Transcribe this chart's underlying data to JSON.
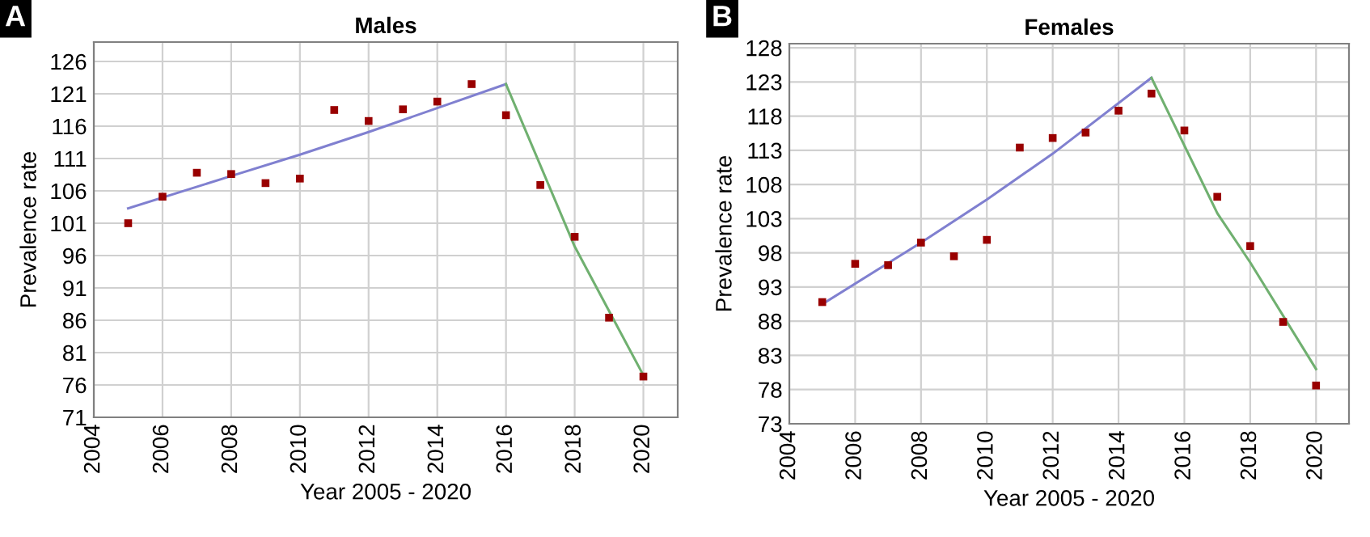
{
  "chart_data": [
    {
      "type": "scatter",
      "title": "Males",
      "xlabel": "Year 2005 - 2020",
      "ylabel": "Prevalence rate",
      "annotations": [
        "A"
      ],
      "xlim": [
        2004,
        2021
      ],
      "xticks": [
        2004,
        2006,
        2008,
        2010,
        2012,
        2014,
        2016,
        2018,
        2020
      ],
      "ylim": [
        71,
        129
      ],
      "yticks": [
        71,
        76,
        81,
        86,
        91,
        96,
        101,
        106,
        111,
        116,
        121,
        126
      ],
      "grid": true,
      "legend": false,
      "series": [
        {
          "color": "#990000",
          "marker": "square",
          "x": [
            2005,
            2006,
            2007,
            2008,
            2009,
            2010,
            2011,
            2012,
            2013,
            2014,
            2015,
            2016,
            2017,
            2018,
            2019,
            2020
          ],
          "values": [
            101.0,
            105.1,
            108.8,
            108.6,
            107.2,
            107.9,
            118.5,
            116.8,
            118.6,
            119.8,
            122.5,
            117.7,
            106.9,
            98.9,
            86.4,
            77.3
          ]
        },
        {
          "type": "line",
          "color": "#8080d0",
          "x": [
            2005,
            2008,
            2010,
            2012,
            2014,
            2016
          ],
          "values": [
            103.3,
            108.3,
            111.6,
            115.1,
            118.8,
            122.5
          ]
        },
        {
          "type": "line",
          "color": "#70b070",
          "x": [
            2016,
            2018,
            2020
          ],
          "values": [
            122.5,
            97.4,
            77.5
          ]
        }
      ]
    },
    {
      "type": "scatter",
      "title": "Females",
      "xlabel": "Year 2005 - 2020",
      "ylabel": "Prevalence rate",
      "annotations": [
        "B"
      ],
      "xlim": [
        2004,
        2021
      ],
      "xticks": [
        2004,
        2006,
        2008,
        2010,
        2012,
        2014,
        2016,
        2018,
        2020
      ],
      "ylim": [
        73,
        128.6
      ],
      "yticks": [
        73,
        78,
        83,
        88,
        93,
        98,
        103,
        108,
        113,
        118,
        123,
        128
      ],
      "grid": true,
      "legend": false,
      "series": [
        {
          "color": "#990000",
          "marker": "square",
          "x": [
            2005,
            2006,
            2007,
            2008,
            2009,
            2010,
            2011,
            2012,
            2013,
            2014,
            2015,
            2016,
            2017,
            2018,
            2019,
            2020
          ],
          "values": [
            90.8,
            96.4,
            96.2,
            99.5,
            97.5,
            99.9,
            113.4,
            114.8,
            115.6,
            118.8,
            121.3,
            115.9,
            106.2,
            99.0,
            87.9,
            78.6
          ]
        },
        {
          "type": "line",
          "color": "#8080d0",
          "x": [
            2005,
            2008,
            2010,
            2012,
            2015
          ],
          "values": [
            90.5,
            99.5,
            105.8,
            112.5,
            123.6
          ]
        },
        {
          "type": "line",
          "color": "#70b070",
          "x": [
            2015,
            2017,
            2018,
            2020
          ],
          "values": [
            123.6,
            103.8,
            96.6,
            81.0
          ]
        }
      ]
    }
  ]
}
